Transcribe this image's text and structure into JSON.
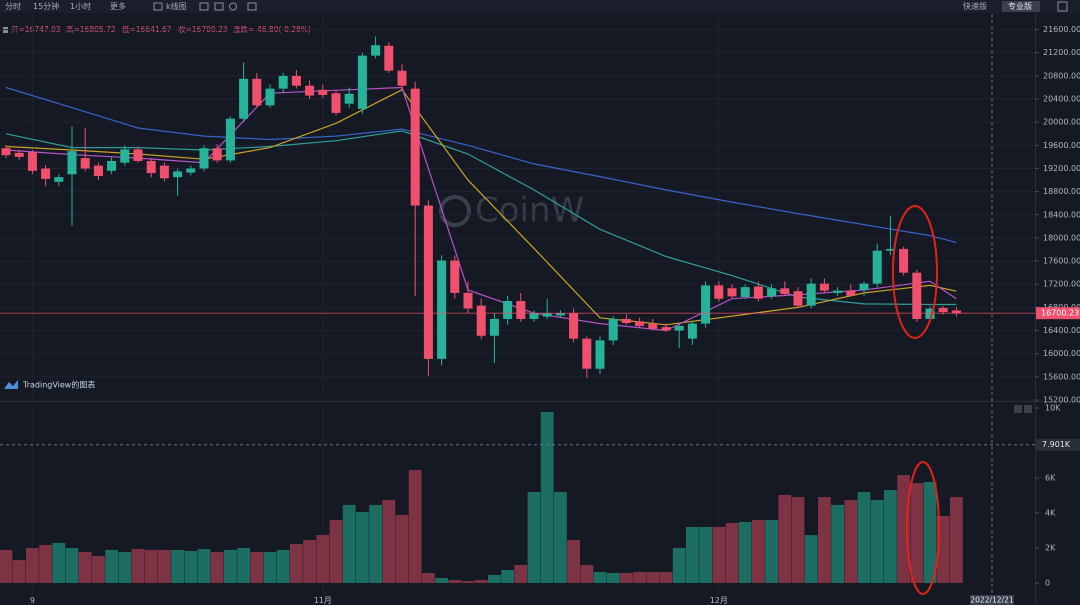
{
  "toolbar": {
    "items": [
      "分时",
      "15分钟",
      "1小时",
      "更多",
      "k线图"
    ],
    "modes": [
      "快速版",
      "专业版"
    ]
  },
  "info": [
    "开=16747.03",
    "高=16805.72",
    "低=16641.67",
    "收=16700.23",
    "涨跌=-46.80(-0.28%)"
  ],
  "watermark": "CoinW",
  "branding": "TradingView的图表",
  "crosshair": {
    "date": "2022/12/21"
  },
  "chart_data": [
    {
      "type": "candlestick",
      "categories": [
        null,
        null,
        "9",
        null,
        null,
        null,
        null,
        null,
        null,
        null,
        null,
        null,
        null,
        null,
        null,
        null,
        null,
        null,
        null,
        null,
        null,
        null,
        null,
        null,
        "11月",
        null,
        null,
        null,
        null,
        null,
        null,
        null,
        null,
        null,
        null,
        null,
        null,
        null,
        null,
        null,
        null,
        null,
        null,
        null,
        null,
        null,
        null,
        null,
        null,
        null,
        null,
        null,
        null,
        null,
        "12月",
        null,
        null,
        null,
        null,
        null,
        null,
        null,
        null,
        null,
        null,
        null,
        null,
        null,
        null,
        null,
        null,
        null,
        null
      ],
      "open": [
        19550,
        19470,
        19480,
        19200,
        18970,
        19100,
        19380,
        19250,
        19160,
        19300,
        19530,
        19330,
        19250,
        19050,
        19130,
        19200,
        19550,
        19340,
        20060,
        20750,
        20290,
        20580,
        20800,
        20630,
        20560,
        20500,
        20320,
        20230,
        21150,
        21320,
        20890,
        20580,
        18560,
        15910,
        17610,
        17050,
        16830,
        16310,
        16600,
        16910,
        16600,
        16640,
        16660,
        16700,
        16260,
        15740,
        16230,
        16600,
        16560,
        16520,
        16460,
        16400,
        16260,
        16520,
        17180,
        17130,
        16980,
        17160,
        16990,
        17130,
        17080,
        16830,
        17210,
        17050,
        17090,
        17100,
        17210,
        17780,
        17810,
        17400,
        16600,
        16790,
        16747.03
      ],
      "high": [
        19600,
        19520,
        19520,
        19260,
        19100,
        19930,
        19900,
        19300,
        19400,
        19600,
        19580,
        19380,
        19300,
        19200,
        19250,
        19600,
        19620,
        20100,
        21030,
        20850,
        20650,
        20850,
        20900,
        20720,
        20650,
        20560,
        20600,
        21200,
        21480,
        21380,
        21000,
        20700,
        18650,
        17700,
        17700,
        17250,
        16950,
        16700,
        17000,
        17050,
        16750,
        16950,
        16750,
        16780,
        16300,
        16300,
        16650,
        16680,
        16620,
        16600,
        16520,
        16500,
        16560,
        17250,
        17250,
        17200,
        17200,
        17250,
        17200,
        17250,
        17150,
        17300,
        17300,
        17150,
        17200,
        17250,
        17900,
        18380,
        17850,
        17450,
        16820,
        16820,
        16805.72
      ],
      "low": [
        19380,
        19350,
        19100,
        18900,
        18900,
        18210,
        19150,
        19000,
        19100,
        19250,
        19300,
        19050,
        18980,
        18730,
        19080,
        19150,
        19300,
        19300,
        20000,
        20250,
        20250,
        20500,
        20580,
        20400,
        20420,
        20120,
        20250,
        20150,
        21100,
        20850,
        20550,
        17000,
        15620,
        15800,
        16950,
        16700,
        16250,
        15840,
        16500,
        16550,
        16550,
        16600,
        16620,
        16200,
        15580,
        15650,
        16150,
        16500,
        16450,
        16400,
        16380,
        16100,
        16150,
        16450,
        16900,
        16950,
        16950,
        16900,
        16950,
        17000,
        16800,
        16780,
        17050,
        17000,
        17000,
        17000,
        17150,
        17700,
        17350,
        16550,
        16550,
        16680,
        16641.67
      ],
      "close": [
        19430,
        19400,
        19160,
        19020,
        19050,
        19500,
        19200,
        19070,
        19330,
        19530,
        19330,
        19120,
        19030,
        19150,
        19200,
        19550,
        19340,
        20060,
        20750,
        20290,
        20580,
        20800,
        20630,
        20460,
        20470,
        20160,
        20490,
        21150,
        21330,
        20890,
        20630,
        18560,
        15910,
        17610,
        17050,
        16780,
        16310,
        16600,
        16910,
        16600,
        16700,
        16700,
        16700,
        16260,
        15740,
        16230,
        16600,
        16530,
        16480,
        16430,
        16400,
        16480,
        16520,
        17180,
        16950,
        16990,
        17150,
        16950,
        17130,
        17030,
        16830,
        17210,
        17090,
        17090,
        17000,
        17210,
        17780,
        17810,
        17400,
        16600,
        16780,
        16720,
        16700.23
      ],
      "up_color": "#26b39a",
      "down_color": "#f0506e",
      "ylim": [
        15200,
        21800
      ],
      "yticks": [
        {
          "value": 21600,
          "label": "21600.00"
        },
        {
          "value": 21200,
          "label": "21200.00"
        },
        {
          "value": 20800,
          "label": "20800.00"
        },
        {
          "value": 20400,
          "label": "20400.00"
        },
        {
          "value": 20000,
          "label": "20000.00"
        },
        {
          "value": 19600,
          "label": "19600.00"
        },
        {
          "value": 19200,
          "label": "19200.00"
        },
        {
          "value": 18800,
          "label": "18800.00"
        },
        {
          "value": 18400,
          "label": "18400.00"
        },
        {
          "value": 18000,
          "label": "18000.00"
        },
        {
          "value": 17600,
          "label": "17600.00"
        },
        {
          "value": 17200,
          "label": "17200.00"
        },
        {
          "value": 16800,
          "label": "16800.00"
        },
        {
          "value": 16400,
          "label": "16400.00"
        },
        {
          "value": 16000,
          "label": "16000.00"
        },
        {
          "value": 15600,
          "label": "15600.00"
        },
        {
          "value": 15200,
          "label": "15200.00"
        }
      ],
      "grid": true,
      "moving_averages": [
        {
          "color": "#3a62c9",
          "x": [
            0,
            5,
            10,
            15,
            20,
            25,
            30,
            35,
            40,
            45,
            50,
            55,
            60,
            65,
            70,
            72
          ],
          "values": [
            20600,
            20250,
            19900,
            19760,
            19700,
            19760,
            19880,
            19600,
            19280,
            19060,
            18830,
            18620,
            18420,
            18230,
            18040,
            17920
          ]
        },
        {
          "color": "#2e9e96",
          "x": [
            0,
            5,
            10,
            15,
            20,
            25,
            30,
            35,
            40,
            45,
            50,
            55,
            60,
            65,
            70,
            72
          ],
          "values": [
            19800,
            19560,
            19560,
            19520,
            19580,
            19680,
            19850,
            19450,
            18830,
            18150,
            17680,
            17350,
            16980,
            16860,
            16850,
            16850
          ]
        },
        {
          "color": "#c9a227",
          "x": [
            0,
            5,
            10,
            15,
            20,
            25,
            30,
            35,
            40,
            45,
            50,
            55,
            60,
            65,
            70,
            72
          ],
          "values": [
            19580,
            19520,
            19450,
            19360,
            19560,
            19980,
            20560,
            19000,
            17820,
            16620,
            16500,
            16650,
            16800,
            17050,
            17180,
            17080
          ]
        },
        {
          "color": "#b454c6",
          "x": [
            0,
            5,
            10,
            15,
            20,
            25,
            30,
            35,
            40,
            45,
            50,
            55,
            60,
            65,
            70,
            72
          ],
          "values": [
            19520,
            19440,
            19380,
            19300,
            20500,
            20550,
            20600,
            17100,
            16700,
            16520,
            16400,
            16950,
            17020,
            17100,
            17250,
            16950
          ]
        }
      ],
      "last_price": {
        "value": 16700.23,
        "label": "16700.23"
      }
    },
    {
      "type": "bar",
      "values": [
        1890,
        1310,
        2000,
        2170,
        2290,
        2000,
        1770,
        1540,
        1890,
        1770,
        1940,
        1890,
        1890,
        1890,
        1830,
        1940,
        1770,
        1890,
        2000,
        1770,
        1770,
        1890,
        2230,
        2460,
        2740,
        3600,
        4460,
        4060,
        4460,
        4740,
        3890,
        6460,
        570,
        290,
        170,
        110,
        170,
        460,
        740,
        1030,
        5200,
        9770,
        5200,
        2460,
        1030,
        630,
        570,
        570,
        630,
        630,
        630,
        2000,
        3200,
        3200,
        3200,
        3430,
        3490,
        3600,
        3600,
        5030,
        4910,
        2740,
        4910,
        4460,
        4740,
        5200,
        4740,
        5310,
        6170,
        5710,
        5770,
        3830,
        4910
      ],
      "up_color": "#1d6e62",
      "down_color": "#7e3344",
      "ylim": [
        0,
        10000
      ],
      "yticks": [
        {
          "value": 10000,
          "label": "10K"
        },
        {
          "value": 6000,
          "label": "6K"
        },
        {
          "value": 4000,
          "label": "4K"
        },
        {
          "value": 2000,
          "label": "2K"
        },
        0
      ],
      "crosshair_value": {
        "value": 7901,
        "label": "7.901K"
      }
    }
  ]
}
